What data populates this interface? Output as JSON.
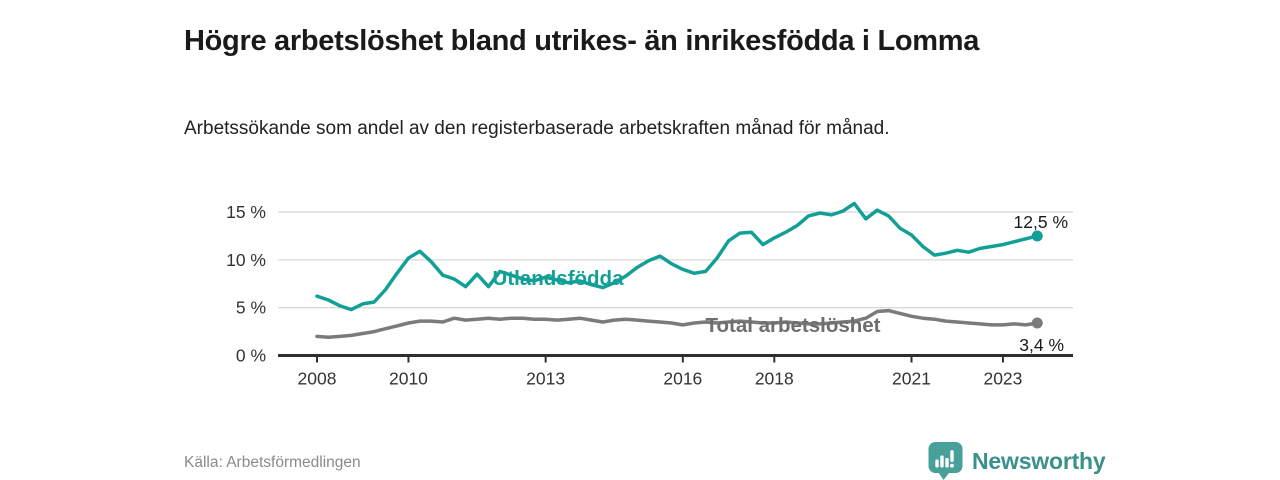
{
  "header": {
    "title": "Högre arbetslöshet bland utrikes- än inrikesfödda i Lomma",
    "subtitle": "Arbetssökande som andel av den registerbaserade arbetskraften månad för månad."
  },
  "footer": {
    "source": "Källa: Arbetsförmedlingen",
    "brand": "Newsworthy"
  },
  "colors": {
    "accent": "#12a096",
    "total_line": "#7b7b7b",
    "total_label": "#6e6e6e",
    "brand": "#3a918c",
    "axis": "#2e2e2e",
    "grid": "#d9d9d9",
    "tick_text": "#333333",
    "end_label_text": "#1a1a1a"
  },
  "chart_data": {
    "type": "line",
    "title": "Högre arbetslöshet bland utrikes- än inrikesfödda i Lomma",
    "subtitle": "Arbetssökande som andel av den registerbaserade arbetskraften månad för månad.",
    "xlabel": "",
    "ylabel": "",
    "grid": "horizontal",
    "legend_position": "inline-labels",
    "x_start": 2008.0,
    "x_step_years": 0.25,
    "xlim": [
      2007.6,
      2025.0
    ],
    "ylim": [
      0,
      16.5
    ],
    "x_ticks": [
      2008,
      2010,
      2013,
      2016,
      2018,
      2021,
      2023
    ],
    "x_tick_labels": [
      "2008",
      "2010",
      "2013",
      "2016",
      "2018",
      "2021",
      "2023"
    ],
    "y_ticks": [
      0,
      5,
      10,
      15
    ],
    "y_tick_labels": [
      "0 %",
      "5 %",
      "10 %",
      "15 %"
    ],
    "series": [
      {
        "name": "Utlandsfödda",
        "color": "#12a096",
        "end_label": "12,5 %",
        "end_value": 12.5,
        "values": [
          6.2,
          5.8,
          5.2,
          4.8,
          5.4,
          5.6,
          6.9,
          8.6,
          10.2,
          10.9,
          9.8,
          8.4,
          8.0,
          7.2,
          8.5,
          7.2,
          8.8,
          8.4,
          8.0,
          7.8,
          8.2,
          7.9,
          7.6,
          7.8,
          7.4,
          7.1,
          7.6,
          8.3,
          9.2,
          9.9,
          10.4,
          9.6,
          9.0,
          8.6,
          8.8,
          10.2,
          12.0,
          12.8,
          12.9,
          11.6,
          12.3,
          12.9,
          13.6,
          14.6,
          14.9,
          14.7,
          15.1,
          15.9,
          14.3,
          15.2,
          14.6,
          13.3,
          12.6,
          11.4,
          10.5,
          10.7,
          11.0,
          10.8,
          11.2,
          11.4,
          11.6,
          11.9,
          12.2,
          12.5
        ]
      },
      {
        "name": "Total arbetslöshet",
        "color": "#7b7b7b",
        "end_label": "3,4 %",
        "end_value": 3.4,
        "values": [
          2.0,
          1.9,
          2.0,
          2.1,
          2.3,
          2.5,
          2.8,
          3.1,
          3.4,
          3.6,
          3.6,
          3.5,
          3.9,
          3.7,
          3.8,
          3.9,
          3.8,
          3.9,
          3.9,
          3.8,
          3.8,
          3.7,
          3.8,
          3.9,
          3.7,
          3.5,
          3.7,
          3.8,
          3.7,
          3.6,
          3.5,
          3.4,
          3.2,
          3.4,
          3.5,
          3.4,
          3.5,
          3.6,
          3.5,
          3.4,
          3.4,
          3.5,
          3.4,
          3.3,
          3.3,
          3.4,
          3.5,
          3.6,
          3.9,
          4.6,
          4.7,
          4.4,
          4.1,
          3.9,
          3.8,
          3.6,
          3.5,
          3.4,
          3.3,
          3.2,
          3.2,
          3.3,
          3.2,
          3.4
        ]
      }
    ]
  }
}
